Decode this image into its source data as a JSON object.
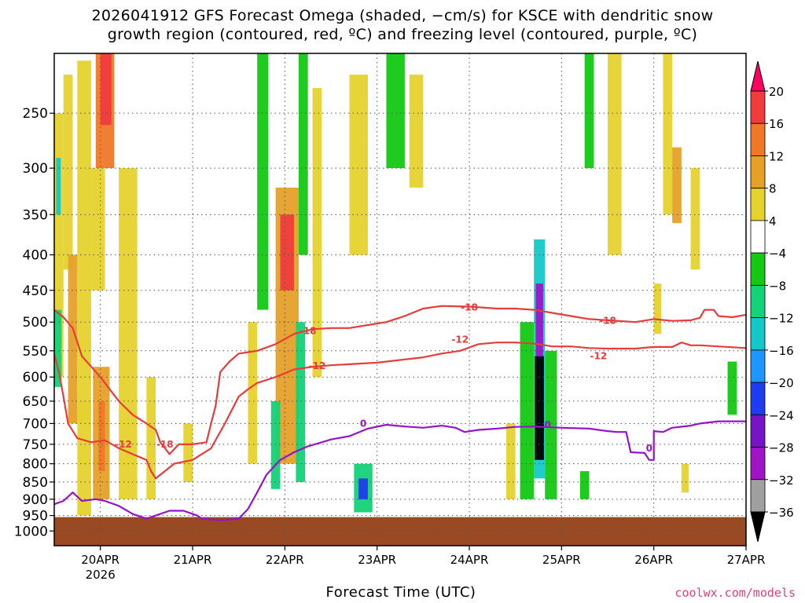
{
  "chart_data": {
    "type": "heatmap",
    "title_line1": "2026041912 GFS Forecast Omega (shaded, −cm/s) for KSCE with dendritic snow",
    "title_line2": "growth region (contoured, red, ºC) and freezing level (contoured, purple, ºC)",
    "xlabel": "Forecast Time (UTC)",
    "x_ticks": [
      "20APR",
      "21APR",
      "22APR",
      "23APR",
      "24APR",
      "25APR",
      "26APR",
      "27APR"
    ],
    "x_tick_positions_days": [
      0.5,
      1.5,
      2.5,
      3.5,
      4.5,
      5.5,
      6.5,
      7.5
    ],
    "x_year_label": "2026",
    "xlim_days": [
      0,
      7.5
    ],
    "y_scale": "log",
    "ylim_hPa": [
      1050,
      205
    ],
    "y_ticks": [
      250,
      300,
      350,
      400,
      450,
      500,
      550,
      600,
      650,
      700,
      750,
      800,
      850,
      900,
      950,
      1000
    ],
    "colorbar": {
      "labels": [
        "20",
        "16",
        "12",
        "8",
        "4",
        "−4",
        "−8",
        "−12",
        "−16",
        "−20",
        "−24",
        "−28",
        "−32",
        "−36"
      ],
      "colors": [
        "#ff0060",
        "#f03c3c",
        "#f07828",
        "#e6a028",
        "#e6d22d",
        "#ffffff",
        "#14c814",
        "#14d278",
        "#14c8c8",
        "#1e96ff",
        "#1e3cf0",
        "#7814c8",
        "#a014c8",
        "#a0a0a0",
        "#000000"
      ]
    },
    "series": [
      {
        "name": "-18",
        "color": "#e63c3c",
        "points": [
          [
            0.0,
            480
          ],
          [
            0.1,
            492
          ],
          [
            0.2,
            510
          ],
          [
            0.3,
            560
          ],
          [
            0.5,
            600
          ],
          [
            0.7,
            650
          ],
          [
            0.85,
            680
          ],
          [
            1.0,
            700
          ],
          [
            1.1,
            715
          ],
          [
            1.15,
            745
          ],
          [
            1.25,
            775
          ],
          [
            1.35,
            750
          ],
          [
            1.5,
            750
          ],
          [
            1.65,
            745
          ],
          [
            1.7,
            700
          ],
          [
            1.75,
            660
          ],
          [
            1.8,
            590
          ],
          [
            1.9,
            570
          ],
          [
            2.0,
            555
          ],
          [
            2.2,
            550
          ],
          [
            2.4,
            538
          ],
          [
            2.6,
            520
          ],
          [
            2.8,
            512
          ],
          [
            3.0,
            510
          ],
          [
            3.2,
            510
          ],
          [
            3.4,
            505
          ],
          [
            3.6,
            500
          ],
          [
            3.8,
            490
          ],
          [
            4.0,
            478
          ],
          [
            4.2,
            474
          ],
          [
            4.5,
            475
          ],
          [
            4.8,
            478
          ],
          [
            5.0,
            478
          ],
          [
            5.2,
            480
          ],
          [
            5.4,
            485
          ],
          [
            5.6,
            490
          ],
          [
            5.8,
            495
          ],
          [
            6.0,
            497
          ],
          [
            6.3,
            500
          ],
          [
            6.5,
            495
          ],
          [
            6.7,
            498
          ],
          [
            6.9,
            497
          ],
          [
            7.0,
            493
          ],
          [
            7.05,
            480
          ],
          [
            7.15,
            480
          ],
          [
            7.2,
            490
          ],
          [
            7.35,
            492
          ],
          [
            7.5,
            488
          ]
        ]
      },
      {
        "name": "-12",
        "color": "#e63c3c",
        "points": [
          [
            0.0,
            555
          ],
          [
            0.05,
            590
          ],
          [
            0.1,
            640
          ],
          [
            0.15,
            700
          ],
          [
            0.25,
            735
          ],
          [
            0.4,
            745
          ],
          [
            0.55,
            740
          ],
          [
            0.7,
            760
          ],
          [
            0.85,
            775
          ],
          [
            1.0,
            790
          ],
          [
            1.05,
            820
          ],
          [
            1.1,
            840
          ],
          [
            1.3,
            800
          ],
          [
            1.5,
            790
          ],
          [
            1.7,
            760
          ],
          [
            1.85,
            700
          ],
          [
            2.0,
            640
          ],
          [
            2.1,
            625
          ],
          [
            2.2,
            612
          ],
          [
            2.4,
            600
          ],
          [
            2.6,
            585
          ],
          [
            2.8,
            580
          ],
          [
            3.0,
            577
          ],
          [
            3.2,
            575
          ],
          [
            3.5,
            572
          ],
          [
            3.8,
            566
          ],
          [
            4.0,
            562
          ],
          [
            4.2,
            555
          ],
          [
            4.4,
            550
          ],
          [
            4.6,
            538
          ],
          [
            4.8,
            535
          ],
          [
            5.0,
            535
          ],
          [
            5.2,
            537
          ],
          [
            5.4,
            542
          ],
          [
            5.6,
            542
          ],
          [
            5.8,
            545
          ],
          [
            6.0,
            546
          ],
          [
            6.3,
            546
          ],
          [
            6.5,
            543
          ],
          [
            6.7,
            543
          ],
          [
            6.8,
            535
          ],
          [
            6.9,
            540
          ],
          [
            7.0,
            540
          ],
          [
            7.5,
            545
          ]
        ]
      },
      {
        "name": "0",
        "color": "#9614c8",
        "points": [
          [
            0.0,
            915
          ],
          [
            0.1,
            905
          ],
          [
            0.2,
            880
          ],
          [
            0.3,
            905
          ],
          [
            0.45,
            900
          ],
          [
            0.55,
            905
          ],
          [
            0.7,
            920
          ],
          [
            0.85,
            945
          ],
          [
            1.0,
            960
          ],
          [
            1.1,
            950
          ],
          [
            1.25,
            935
          ],
          [
            1.4,
            935
          ],
          [
            1.5,
            945
          ],
          [
            1.55,
            950
          ],
          [
            1.6,
            960
          ],
          [
            1.8,
            965
          ],
          [
            2.0,
            960
          ],
          [
            2.1,
            930
          ],
          [
            2.2,
            880
          ],
          [
            2.3,
            830
          ],
          [
            2.45,
            790
          ],
          [
            2.6,
            770
          ],
          [
            2.75,
            755
          ],
          [
            2.9,
            745
          ],
          [
            3.0,
            738
          ],
          [
            3.2,
            730
          ],
          [
            3.4,
            712
          ],
          [
            3.6,
            703
          ],
          [
            3.8,
            707
          ],
          [
            4.0,
            710
          ],
          [
            4.2,
            705
          ],
          [
            4.35,
            710
          ],
          [
            4.45,
            720
          ],
          [
            4.6,
            715
          ],
          [
            4.8,
            712
          ],
          [
            5.0,
            708
          ],
          [
            5.2,
            707
          ],
          [
            5.5,
            710
          ],
          [
            5.8,
            712
          ],
          [
            6.0,
            718
          ],
          [
            6.1,
            720
          ],
          [
            6.2,
            720
          ],
          [
            6.25,
            770
          ],
          [
            6.4,
            772
          ],
          [
            6.45,
            790
          ],
          [
            6.5,
            790
          ],
          [
            6.5,
            718
          ],
          [
            6.6,
            720
          ],
          [
            6.7,
            710
          ],
          [
            6.9,
            705
          ],
          [
            7.0,
            700
          ],
          [
            7.2,
            695
          ],
          [
            7.5,
            695
          ]
        ]
      }
    ],
    "contour_labels": [
      {
        "text": "-18",
        "day": 4.5,
        "p": 476
      },
      {
        "text": "-18",
        "day": 2.75,
        "p": 515
      },
      {
        "text": "-18",
        "day": 6.0,
        "p": 498
      },
      {
        "text": "-18",
        "day": 1.2,
        "p": 750
      },
      {
        "text": "-12",
        "day": 4.4,
        "p": 530
      },
      {
        "text": "-12",
        "day": 2.85,
        "p": 578
      },
      {
        "text": "-12",
        "day": 5.9,
        "p": 560
      },
      {
        "text": "-12",
        "day": 0.75,
        "p": 750
      },
      {
        "text": "0",
        "day": 3.35,
        "p": 700
      },
      {
        "text": "0",
        "day": 5.35,
        "p": 703
      },
      {
        "text": "0",
        "day": 6.45,
        "p": 760
      }
    ],
    "omega_cells": [
      {
        "d0": 0.1,
        "d1": 0.2,
        "p0": 220,
        "p1": 420,
        "v": 6
      },
      {
        "d0": 0.15,
        "d1": 0.25,
        "p0": 400,
        "p1": 700,
        "v": 8
      },
      {
        "d0": 0.0,
        "d1": 0.1,
        "p0": 250,
        "p1": 600,
        "v": 5
      },
      {
        "d0": 0.0,
        "d1": 0.08,
        "p0": 480,
        "p1": 620,
        "v": -10
      },
      {
        "d0": 0.02,
        "d1": 0.07,
        "p0": 290,
        "p1": 350,
        "v": -14
      },
      {
        "d0": 0.25,
        "d1": 0.4,
        "p0": 210,
        "p1": 700,
        "v": 6
      },
      {
        "d0": 0.45,
        "d1": 0.65,
        "p0": 205,
        "p1": 300,
        "v": 14
      },
      {
        "d0": 0.5,
        "d1": 0.62,
        "p0": 205,
        "p1": 260,
        "v": 17
      },
      {
        "d0": 0.4,
        "d1": 0.55,
        "p0": 300,
        "p1": 450,
        "v": 6
      },
      {
        "d0": 0.42,
        "d1": 0.6,
        "p0": 580,
        "p1": 900,
        "v": 9
      },
      {
        "d0": 0.48,
        "d1": 0.55,
        "p0": 650,
        "p1": 820,
        "v": 14
      },
      {
        "d0": 0.25,
        "d1": 0.4,
        "p0": 650,
        "p1": 950,
        "v": 6
      },
      {
        "d0": 0.7,
        "d1": 0.9,
        "p0": 300,
        "p1": 900,
        "v": 5
      },
      {
        "d0": 1.0,
        "d1": 1.1,
        "p0": 600,
        "p1": 900,
        "v": 5
      },
      {
        "d0": 1.4,
        "d1": 1.5,
        "p0": 700,
        "p1": 850,
        "v": 5
      },
      {
        "d0": 2.2,
        "d1": 2.32,
        "p0": 205,
        "p1": 480,
        "v": -7
      },
      {
        "d0": 2.4,
        "d1": 2.65,
        "p0": 320,
        "p1": 800,
        "v": 9
      },
      {
        "d0": 2.45,
        "d1": 2.6,
        "p0": 350,
        "p1": 450,
        "v": 16
      },
      {
        "d0": 2.1,
        "d1": 2.2,
        "p0": 500,
        "p1": 800,
        "v": 5
      },
      {
        "d0": 2.35,
        "d1": 2.45,
        "p0": 650,
        "p1": 870,
        "v": -8
      },
      {
        "d0": 2.62,
        "d1": 2.72,
        "p0": 500,
        "p1": 850,
        "v": -8
      },
      {
        "d0": 2.65,
        "d1": 2.75,
        "p0": 205,
        "p1": 400,
        "v": -7
      },
      {
        "d0": 2.8,
        "d1": 2.9,
        "p0": 230,
        "p1": 600,
        "v": 5
      },
      {
        "d0": 3.6,
        "d1": 3.8,
        "p0": 205,
        "p1": 300,
        "v": -7
      },
      {
        "d0": 3.2,
        "d1": 3.4,
        "p0": 220,
        "p1": 400,
        "v": 5
      },
      {
        "d0": 3.85,
        "d1": 4.0,
        "p0": 220,
        "p1": 320,
        "v": 5
      },
      {
        "d0": 3.25,
        "d1": 3.45,
        "p0": 800,
        "p1": 940,
        "v": -10
      },
      {
        "d0": 3.3,
        "d1": 3.4,
        "p0": 840,
        "p1": 900,
        "v": -22
      },
      {
        "d0": 5.2,
        "d1": 5.32,
        "p0": 380,
        "p1": 840,
        "v": -14
      },
      {
        "d0": 5.22,
        "d1": 5.3,
        "p0": 440,
        "p1": 560,
        "v": -28
      },
      {
        "d0": 5.21,
        "d1": 5.31,
        "p0": 560,
        "p1": 790,
        "v": -40
      },
      {
        "d0": 5.05,
        "d1": 5.2,
        "p0": 500,
        "p1": 900,
        "v": -7
      },
      {
        "d0": 5.32,
        "d1": 5.45,
        "p0": 550,
        "p1": 900,
        "v": -7
      },
      {
        "d0": 4.9,
        "d1": 5.0,
        "p0": 700,
        "p1": 900,
        "v": 5
      },
      {
        "d0": 5.7,
        "d1": 5.8,
        "p0": 820,
        "p1": 900,
        "v": -7
      },
      {
        "d0": 5.75,
        "d1": 5.85,
        "p0": 205,
        "p1": 300,
        "v": -7
      },
      {
        "d0": 6.0,
        "d1": 6.15,
        "p0": 205,
        "p1": 400,
        "v": 5
      },
      {
        "d0": 6.6,
        "d1": 6.7,
        "p0": 205,
        "p1": 350,
        "v": 5
      },
      {
        "d0": 6.7,
        "d1": 6.8,
        "p0": 280,
        "p1": 360,
        "v": 9
      },
      {
        "d0": 6.9,
        "d1": 7.0,
        "p0": 300,
        "p1": 420,
        "v": 5
      },
      {
        "d0": 6.5,
        "d1": 6.58,
        "p0": 440,
        "p1": 520,
        "v": 5
      },
      {
        "d0": 7.3,
        "d1": 7.4,
        "p0": 570,
        "p1": 680,
        "v": -7
      },
      {
        "d0": 6.8,
        "d1": 6.88,
        "p0": 800,
        "p1": 880,
        "v": 5
      }
    ],
    "surface": {
      "color": "#9a4a22",
      "p_top_hPa": 955
    }
  }
}
